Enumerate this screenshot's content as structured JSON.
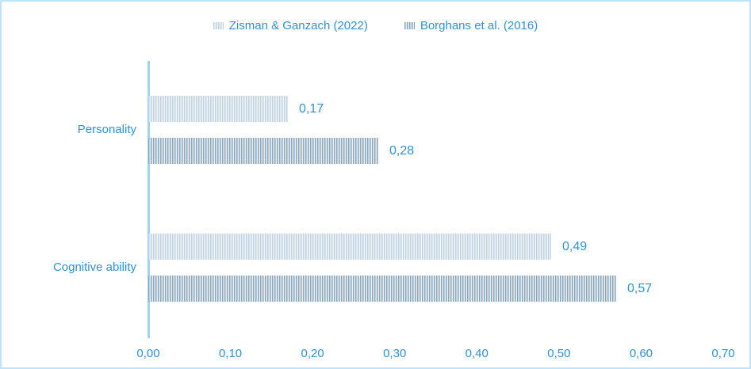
{
  "chart_data": {
    "type": "bar",
    "orientation": "horizontal",
    "title": "",
    "categories": [
      "Personality",
      "Cognitive ability"
    ],
    "series": [
      {
        "name": "Zisman & Ganzach (2022)",
        "values": [
          0.17,
          0.49
        ],
        "value_labels": [
          "0,17",
          "0,49"
        ],
        "pattern": "vertical-stripes",
        "stripe_color": "#c1d3e1",
        "background_color": "#eff3f7"
      },
      {
        "name": "Borghans et al. (2016)",
        "values": [
          0.28,
          0.57
        ],
        "value_labels": [
          "0,28",
          "0,57"
        ],
        "pattern": "vertical-stripes",
        "stripe_color": "#8ba8bd",
        "background_color": "#e9eef3"
      }
    ],
    "xlim": [
      0,
      0.7
    ],
    "x_tick_labels": [
      "0,00",
      "0,10",
      "0,20",
      "0,30",
      "0,40",
      "0,50",
      "0,60",
      "0,70"
    ],
    "decimal_separator": ",",
    "grid": false,
    "legend_position": "top-center"
  },
  "colors": {
    "label_text": "#2e93d9",
    "axis_line": "#a0d3f4",
    "chart_border": "#bfe3fa",
    "background": "#ffffff"
  }
}
